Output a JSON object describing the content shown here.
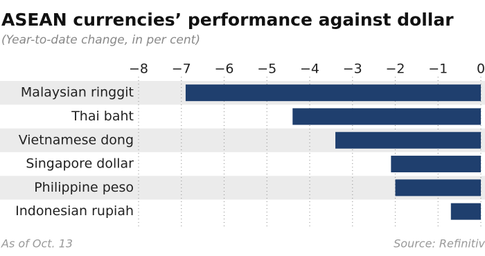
{
  "chart_data": {
    "type": "bar",
    "orientation": "horizontal",
    "title": "ASEAN currencies’ performance against dollar",
    "subtitle": "(Year-to-date change, in per cent)",
    "note": "As of Oct. 13",
    "source": "Source: Refinitiv",
    "categories": [
      "Malaysian ringgit",
      "Thai baht",
      "Vietnamese dong",
      "Singapore dollar",
      "Philippine peso",
      "Indonesian rupiah"
    ],
    "values": [
      -6.9,
      -4.4,
      -3.4,
      -2.1,
      -2.0,
      -0.7
    ],
    "color": "#1f3f6e",
    "xlim": [
      -8,
      0
    ],
    "xticks": [
      {
        "value": -8,
        "label": "−8"
      },
      {
        "value": -7,
        "label": "−7"
      },
      {
        "value": -6,
        "label": "−6"
      },
      {
        "value": -5,
        "label": "−5"
      },
      {
        "value": -4,
        "label": "−4"
      },
      {
        "value": -3,
        "label": "−3"
      },
      {
        "value": -2,
        "label": "−2"
      },
      {
        "value": -1,
        "label": "−1"
      },
      0
    ],
    "grid": true
  }
}
